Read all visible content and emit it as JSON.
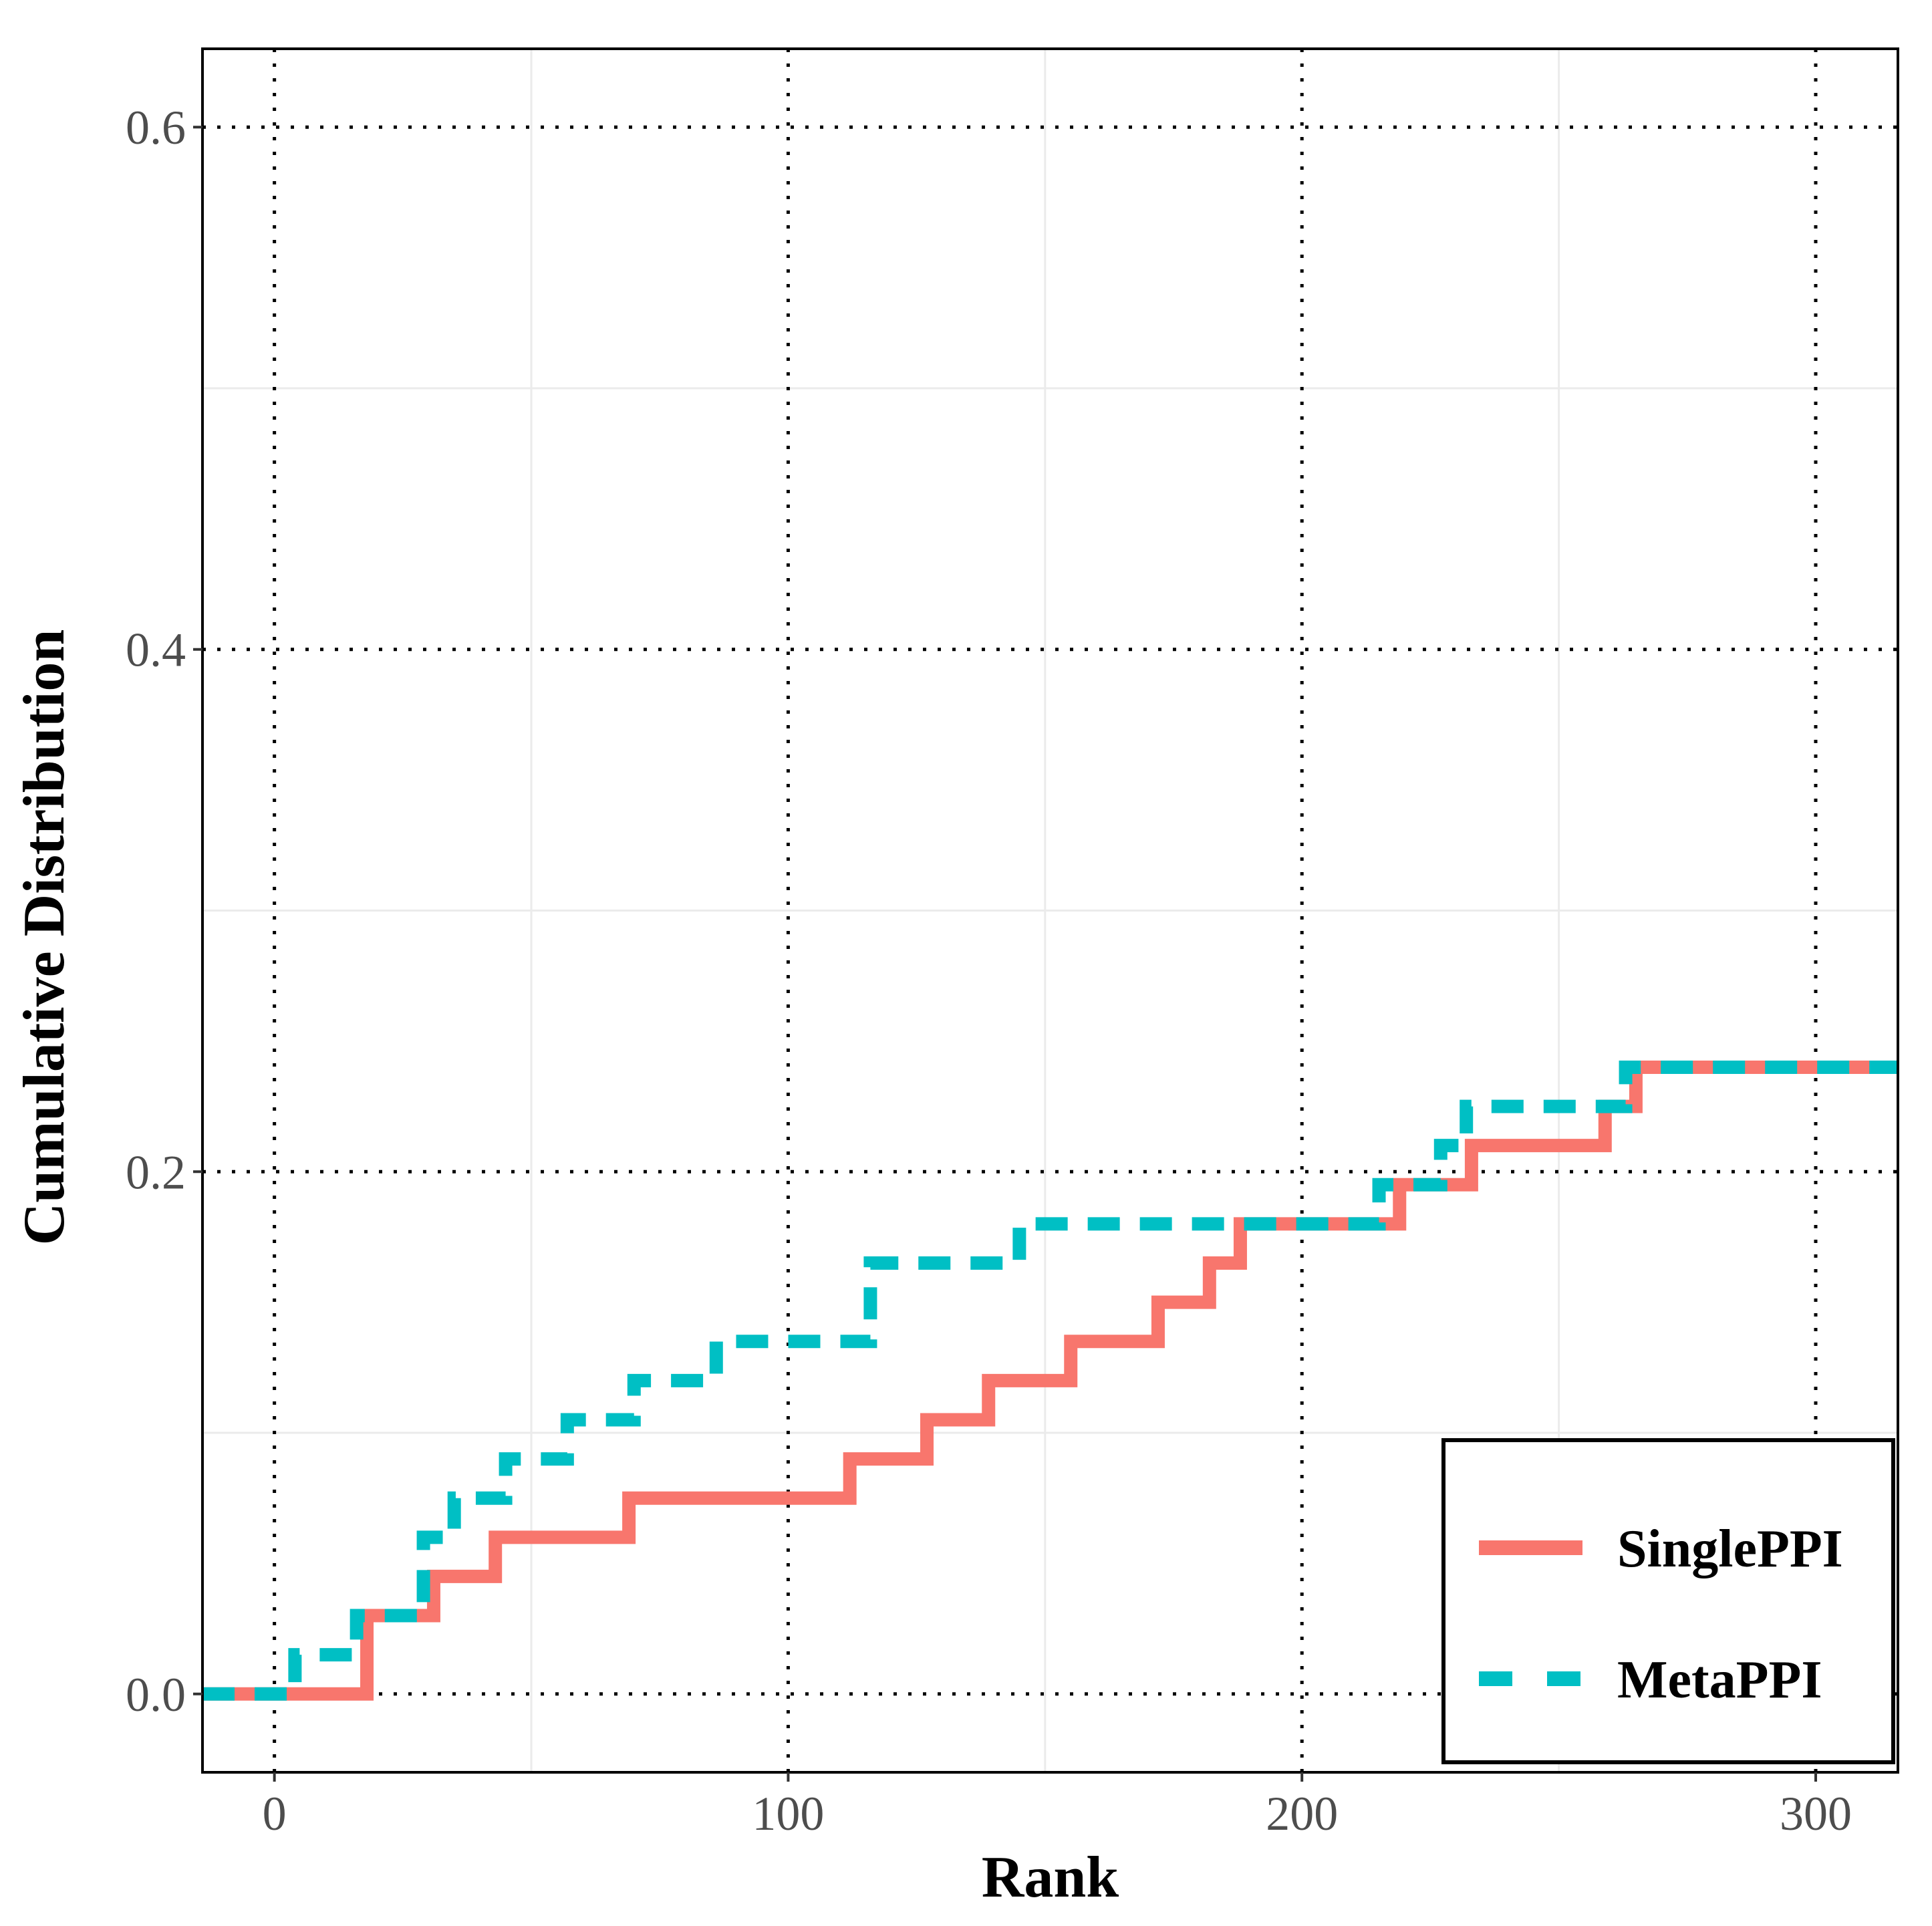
{
  "chart_data": {
    "type": "line",
    "title": "",
    "xlabel": "Rank",
    "ylabel": "Cumulative Distribution",
    "xlim": [
      -14,
      316
    ],
    "ylim": [
      -0.03,
      0.63
    ],
    "xticks": [
      0,
      100,
      200,
      300
    ],
    "xtick_labels": [
      "0",
      "100",
      "200",
      "300"
    ],
    "yticks": [
      0.0,
      0.2,
      0.4,
      0.6
    ],
    "ytick_labels": [
      "0.0",
      "0.2",
      "0.4",
      "0.6"
    ],
    "x_minor_grid": [
      50,
      150,
      250
    ],
    "y_minor_grid": [
      0.1,
      0.3,
      0.5
    ],
    "grid": true,
    "legend_position": "bottom-right",
    "series": [
      {
        "name": "SinglePPI",
        "color": "#F8766D",
        "linestyle": "solid",
        "x": [
          -14,
          18,
          31,
          43,
          69,
          112,
          127,
          139,
          155,
          172,
          182,
          188,
          219,
          233,
          259,
          265,
          316
        ],
        "y": [
          0.0,
          0.03,
          0.045,
          0.06,
          0.075,
          0.09,
          0.105,
          0.12,
          0.135,
          0.15,
          0.165,
          0.18,
          0.195,
          0.21,
          0.225,
          0.24,
          0.24
        ]
      },
      {
        "name": "MetaPPI",
        "color": "#00BFC4",
        "linestyle": "dashed",
        "x": [
          -14,
          4,
          16,
          29,
          35,
          45,
          57,
          70,
          86,
          116,
          145,
          215,
          227,
          232,
          263,
          316
        ],
        "y": [
          0.0,
          0.015,
          0.03,
          0.06,
          0.075,
          0.09,
          0.105,
          0.12,
          0.135,
          0.165,
          0.18,
          0.195,
          0.21,
          0.225,
          0.24,
          0.24
        ]
      }
    ]
  }
}
